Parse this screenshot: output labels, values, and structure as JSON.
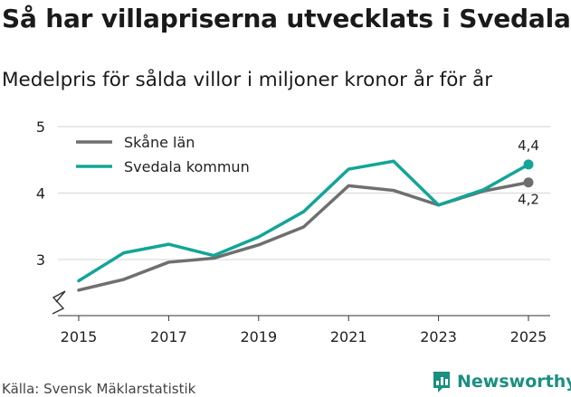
{
  "chart_data": {
    "type": "line",
    "title": "Så har villapriserna utvecklats i Svedala",
    "subtitle": "Medelpris för sålda villor i miljoner kronor år för år",
    "x": [
      2015,
      2016,
      2017,
      2018,
      2019,
      2020,
      2021,
      2022,
      2023,
      2024,
      2025
    ],
    "x_tick_labels": [
      "2015",
      "2017",
      "2019",
      "2021",
      "2023",
      "2025"
    ],
    "y_tick_labels": [
      "3",
      "4",
      "5"
    ],
    "ylim": [
      2.2,
      5
    ],
    "y_axis_break": true,
    "grid": "horizontal",
    "legend_position": "top-left",
    "series": [
      {
        "name": "Skåne län",
        "color": "#706f6f",
        "values": [
          2.54,
          2.7,
          2.96,
          3.02,
          3.22,
          3.49,
          4.11,
          4.04,
          3.82,
          4.03,
          4.16
        ],
        "end_label": "4,2"
      },
      {
        "name": "Svedala kommun",
        "color": "#13a597",
        "values": [
          2.68,
          3.1,
          3.23,
          3.06,
          3.34,
          3.72,
          4.36,
          4.48,
          3.82,
          4.05,
          4.43
        ],
        "end_label": "4,4"
      }
    ]
  },
  "source": "Källa: Svensk Mäklarstatistik",
  "brand": {
    "name": "Newsworthy",
    "color": "#1b8f80"
  }
}
